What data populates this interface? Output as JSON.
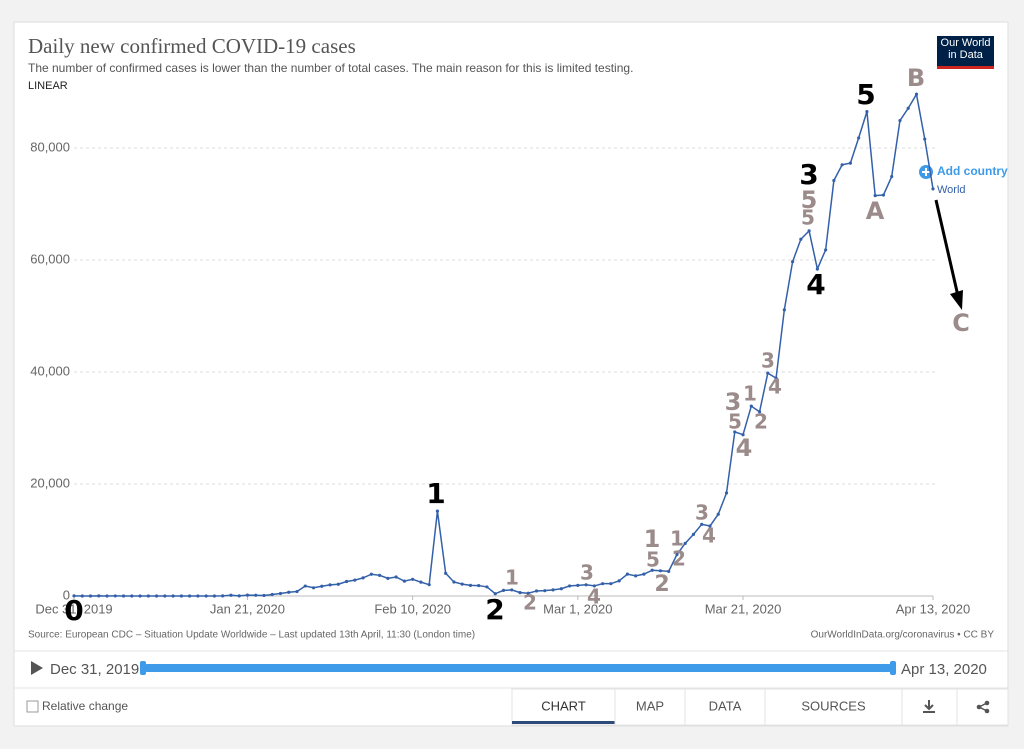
{
  "chart_data": {
    "type": "line",
    "title": "Daily new confirmed COVID-19 cases",
    "subtitle": "The number of confirmed cases is lower than the number of total cases. The main reason for this is limited testing.",
    "scale_label": "LINEAR",
    "logo": "Our World in Data",
    "add_country": "Add country",
    "x": [
      "2019-12-31",
      "2020-01-01",
      "2020-01-02",
      "2020-01-03",
      "2020-01-04",
      "2020-01-05",
      "2020-01-06",
      "2020-01-07",
      "2020-01-08",
      "2020-01-09",
      "2020-01-10",
      "2020-01-11",
      "2020-01-12",
      "2020-01-13",
      "2020-01-14",
      "2020-01-15",
      "2020-01-16",
      "2020-01-17",
      "2020-01-18",
      "2020-01-19",
      "2020-01-20",
      "2020-01-21",
      "2020-01-22",
      "2020-01-23",
      "2020-01-24",
      "2020-01-25",
      "2020-01-26",
      "2020-01-27",
      "2020-01-28",
      "2020-01-29",
      "2020-01-30",
      "2020-01-31",
      "2020-02-01",
      "2020-02-02",
      "2020-02-03",
      "2020-02-04",
      "2020-02-05",
      "2020-02-06",
      "2020-02-07",
      "2020-02-08",
      "2020-02-09",
      "2020-02-10",
      "2020-02-11",
      "2020-02-12",
      "2020-02-13",
      "2020-02-14",
      "2020-02-15",
      "2020-02-16",
      "2020-02-17",
      "2020-02-18",
      "2020-02-19",
      "2020-02-20",
      "2020-02-21",
      "2020-02-22",
      "2020-02-23",
      "2020-02-24",
      "2020-02-25",
      "2020-02-26",
      "2020-02-27",
      "2020-02-28",
      "2020-02-29",
      "2020-03-01",
      "2020-03-02",
      "2020-03-03",
      "2020-03-04",
      "2020-03-05",
      "2020-03-06",
      "2020-03-07",
      "2020-03-08",
      "2020-03-09",
      "2020-03-10",
      "2020-03-11",
      "2020-03-12",
      "2020-03-13",
      "2020-03-14",
      "2020-03-15",
      "2020-03-16",
      "2020-03-17",
      "2020-03-18",
      "2020-03-19",
      "2020-03-20",
      "2020-03-21",
      "2020-03-22",
      "2020-03-23",
      "2020-03-24",
      "2020-03-25",
      "2020-03-26",
      "2020-03-27",
      "2020-03-28",
      "2020-03-29",
      "2020-03-30",
      "2020-03-31",
      "2020-04-01",
      "2020-04-02",
      "2020-04-03",
      "2020-04-04",
      "2020-04-05",
      "2020-04-06",
      "2020-04-07",
      "2020-04-08",
      "2020-04-09",
      "2020-04-10",
      "2020-04-11",
      "2020-04-12",
      "2020-04-13"
    ],
    "series": [
      {
        "name": "World",
        "color": "#3360a9",
        "values": [
          27,
          0,
          0,
          17,
          0,
          15,
          0,
          0,
          0,
          0,
          0,
          0,
          0,
          1,
          0,
          1,
          0,
          5,
          17,
          136,
          20,
          151,
          140,
          97,
          266,
          453,
          673,
          796,
          1777,
          1466,
          1740,
          1980,
          2101,
          2590,
          2829,
          3235,
          3884,
          3694,
          3151,
          3387,
          2653,
          2984,
          2473,
          2022,
          15153,
          4050,
          2502,
          2121,
          1900,
          1862,
          1621,
          410,
          1000,
          1087,
          600,
          500,
          900,
          950,
          1100,
          1300,
          1800,
          1900,
          2000,
          1800,
          2200,
          2200,
          2700,
          3900,
          3600,
          3900,
          4600,
          4500,
          4400,
          7400,
          9400,
          11000,
          12800,
          12500,
          14600,
          18400,
          29300,
          28800,
          33900,
          32900,
          39800,
          38900,
          51100,
          59700,
          63700,
          65200,
          58400,
          61800,
          74200,
          77000,
          77300,
          81800,
          86500,
          71500,
          71600,
          74900,
          84900,
          87100,
          89600,
          81600,
          72700
        ]
      }
    ],
    "xlim": [
      "2019-12-31",
      "2020-04-13"
    ],
    "xticks": [
      {
        "value": "2019-12-31",
        "label": "Dec 31, 2019"
      },
      {
        "value": "2020-01-21",
        "label": "Jan 21, 2020"
      },
      {
        "value": "2020-02-10",
        "label": "Feb 10, 2020"
      },
      {
        "value": "2020-03-01",
        "label": "Mar 1, 2020"
      },
      {
        "value": "2020-03-21",
        "label": "Mar 21, 2020"
      },
      {
        "value": "2020-04-13",
        "label": "Apr 13, 2020"
      }
    ],
    "ylim": [
      0,
      90000
    ],
    "yticks": [
      0,
      {
        "value": 20000,
        "label": "20,000"
      },
      {
        "value": 40000,
        "label": "40,000"
      },
      {
        "value": 60000,
        "label": "60,000"
      },
      {
        "value": 80000,
        "label": "80,000"
      }
    ],
    "grid": true,
    "source": "Source: European CDC – Situation Update Worldwide – Last updated 13th April, 11:30 (London time)",
    "credit": "OurWorldInData.org/coronavirus • CC BY",
    "annotations": [
      {
        "text": "0",
        "color": "#000000"
      },
      {
        "text": "1",
        "color": "#000000"
      },
      {
        "text": "2",
        "color": "#000000"
      },
      {
        "text": "1",
        "color": "#9b8b8b"
      },
      {
        "text": "2",
        "color": "#9b8b8b"
      },
      {
        "text": "3",
        "color": "#9b8b8b"
      },
      {
        "text": "4",
        "color": "#9b8b8b"
      },
      {
        "text": "1",
        "color": "#9b8b8b"
      },
      {
        "text": "5",
        "color": "#9b8b8b"
      },
      {
        "text": "2",
        "color": "#9b8b8b"
      },
      {
        "text": "1",
        "color": "#9b8b8b"
      },
      {
        "text": "2",
        "color": "#9b8b8b"
      },
      {
        "text": "3",
        "color": "#9b8b8b"
      },
      {
        "text": "4",
        "color": "#9b8b8b"
      },
      {
        "text": "3",
        "color": "#9b8b8b"
      },
      {
        "text": "5",
        "color": "#9b8b8b"
      },
      {
        "text": "4",
        "color": "#9b8b8b"
      },
      {
        "text": "1",
        "color": "#9b8b8b"
      },
      {
        "text": "2",
        "color": "#9b8b8b"
      },
      {
        "text": "3",
        "color": "#9b8b8b"
      },
      {
        "text": "4",
        "color": "#9b8b8b"
      },
      {
        "text": "3",
        "color": "#000000"
      },
      {
        "text": "5",
        "color": "#9b8b8b"
      },
      {
        "text": "5",
        "color": "#9b8b8b"
      },
      {
        "text": "4",
        "color": "#000000"
      },
      {
        "text": "5",
        "color": "#000000"
      },
      {
        "text": "A",
        "color": "#9b8b8b"
      },
      {
        "text": "B",
        "color": "#9b8b8b"
      },
      {
        "text": "C",
        "color": "#9b8b8b"
      }
    ]
  },
  "timeline": {
    "start": "Dec 31, 2019",
    "end": "Apr 13, 2020"
  },
  "controls": {
    "relative_change": "Relative change",
    "tabs": [
      "CHART",
      "MAP",
      "DATA",
      "SOURCES"
    ]
  }
}
